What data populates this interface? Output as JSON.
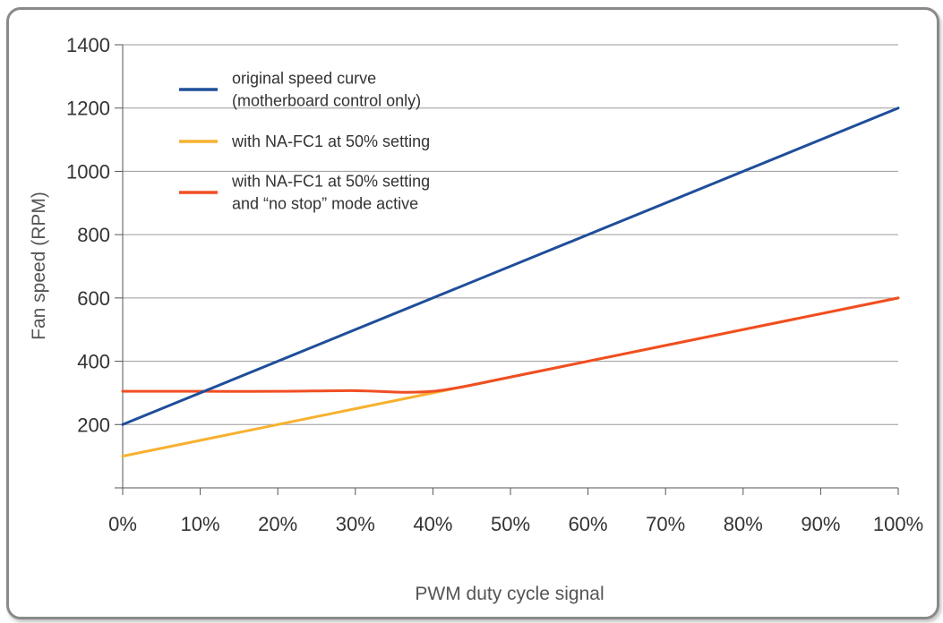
{
  "chart_data": {
    "type": "line",
    "title": "",
    "xlabel": "PWM duty cycle signal",
    "ylabel": "Fan speed (RPM)",
    "xlim": [
      0,
      100
    ],
    "ylim": [
      0,
      1400
    ],
    "x_ticks": [
      0,
      10,
      20,
      30,
      40,
      50,
      60,
      70,
      80,
      90,
      100
    ],
    "x_tick_labels": [
      "0%",
      "10%",
      "20%",
      "30%",
      "40%",
      "50%",
      "60%",
      "70%",
      "80%",
      "90%",
      "100%"
    ],
    "y_ticks": [
      0,
      200,
      400,
      600,
      800,
      1000,
      1200,
      1400
    ],
    "y_tick_labels": [
      "",
      "200",
      "400",
      "600",
      "800",
      "1000",
      "1200",
      "1400"
    ],
    "grid": true,
    "legend_position": "top-left",
    "series": [
      {
        "name": "original speed curve (motherboard control only)",
        "legend_lines": [
          "original speed curve",
          "(motherboard control only)"
        ],
        "color": "#1f4e9a",
        "x": [
          0,
          100
        ],
        "y": [
          200,
          1200
        ]
      },
      {
        "name": "with NA-FC1 at 50% setting",
        "legend_lines": [
          "with NA-FC1 at 50% setting"
        ],
        "color": "#f7b12f",
        "x": [
          0,
          100
        ],
        "y": [
          100,
          600
        ]
      },
      {
        "name": "with NA-FC1 at 50% setting and “no stop” mode active",
        "legend_lines": [
          "with NA-FC1 at 50% setting",
          "and “no stop” mode active"
        ],
        "color": "#f04e23",
        "x": [
          0,
          10,
          20,
          30,
          36,
          40,
          44,
          50,
          60,
          70,
          80,
          90,
          100
        ],
        "y": [
          305,
          305,
          305,
          307,
          302,
          305,
          320,
          350,
          400,
          450,
          500,
          550,
          600
        ]
      }
    ]
  }
}
